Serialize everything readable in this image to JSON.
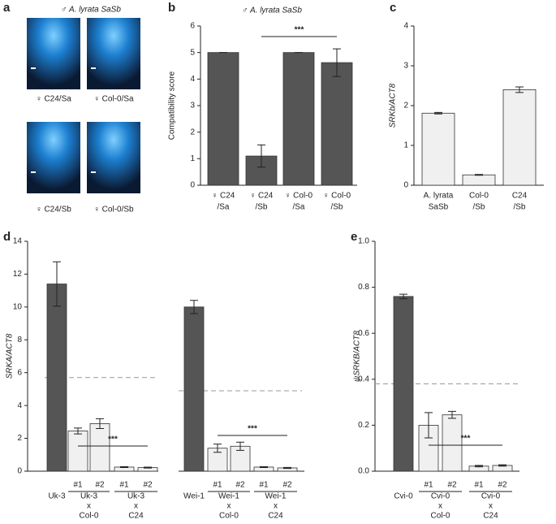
{
  "figure_a": {
    "panel": "a",
    "title": "♂ A. lyrata SaSb",
    "images": [
      "♀ C24/Sa",
      "♀ Col-0/Sa",
      "♀ C24/Sb",
      "♀ Col-0/Sb"
    ]
  },
  "chart_data": [
    {
      "type": "bar",
      "panel": "b",
      "title": "♂ A. lyrata SaSb",
      "ylabel": "Compatibility score",
      "ylim": [
        0,
        6
      ],
      "yticks": [
        0,
        1,
        2,
        3,
        4,
        5,
        6
      ],
      "significance": "***",
      "groups": [
        {
          "color": "#555555",
          "categories": [
            [
              "♀ C24",
              "/Sa"
            ],
            [
              "♀ C24",
              "/Sb"
            ],
            [
              "♀ Col-0",
              "/Sa"
            ],
            [
              "♀ Col-0",
              "/Sb"
            ]
          ],
          "values": [
            5,
            1.1,
            5,
            4.62
          ],
          "errors": [
            0,
            0.42,
            0,
            0.52
          ]
        }
      ]
    },
    {
      "type": "bar",
      "panel": "c",
      "ylabel": "SRKb/ACT8",
      "ylim": [
        0,
        4
      ],
      "yticks": [
        0,
        1,
        2,
        3,
        4
      ],
      "groups": [
        {
          "color": "#f0f0f0",
          "categories": [
            [
              "A. lyrata",
              "SaSb"
            ],
            [
              "Col-0",
              "/Sb"
            ],
            [
              "C24",
              "/Sb"
            ]
          ],
          "values": [
            1.81,
            0.26,
            2.4
          ],
          "errors": [
            0.02,
            0.01,
            0.07
          ]
        }
      ]
    },
    {
      "type": "bar",
      "panel": "d",
      "ylabel": "SRKA/ACT8",
      "ylim": [
        0,
        14
      ],
      "yticks": [
        0,
        2,
        4,
        6,
        8,
        10,
        12,
        14
      ],
      "reference_line": 5.7,
      "significance": "***",
      "groups": [
        {
          "label": [
            "Uk-3"
          ],
          "color": "#555555",
          "categories": [
            null
          ],
          "values": [
            11.4
          ],
          "errors": [
            1.35
          ]
        },
        {
          "label": [
            "Uk-3",
            "x",
            "Col-0"
          ],
          "color": "#f0f0f0",
          "categories": [
            "#1",
            "#2"
          ],
          "values": [
            2.45,
            2.9
          ],
          "errors": [
            0.18,
            0.3
          ]
        },
        {
          "label": [
            "Uk-3",
            "x",
            "C24"
          ],
          "color": "#f0f0f0",
          "categories": [
            "#1",
            "#2"
          ],
          "values": [
            0.25,
            0.22
          ],
          "errors": [
            0.03,
            0.03
          ]
        }
      ]
    },
    {
      "type": "bar",
      "ylim": [
        0,
        14
      ],
      "reference_line": 4.9,
      "significance": "***",
      "groups": [
        {
          "label": [
            "Wei-1"
          ],
          "color": "#555555",
          "categories": [
            null
          ],
          "values": [
            10.0
          ],
          "errors": [
            0.4
          ]
        },
        {
          "label": [
            "Wei-1",
            "x",
            "Col-0"
          ],
          "color": "#f0f0f0",
          "categories": [
            "#1",
            "#2"
          ],
          "values": [
            1.4,
            1.52
          ],
          "errors": [
            0.25,
            0.25
          ]
        },
        {
          "label": [
            "Wei-1",
            "x",
            "C24"
          ],
          "color": "#f0f0f0",
          "categories": [
            "#1",
            "#2"
          ],
          "values": [
            0.25,
            0.2
          ],
          "errors": [
            0.03,
            0.03
          ]
        }
      ]
    },
    {
      "type": "bar",
      "panel": "e",
      "ylabel": "ψSRKB/ACT8",
      "ylim": [
        0,
        1
      ],
      "yticks": [
        {
          "value": 0,
          "label": "0.0"
        },
        0.2,
        0.4,
        0.6,
        0.8,
        {
          "value": 1,
          "label": "1.0"
        }
      ],
      "reference_line": 0.38,
      "significance": "***",
      "groups": [
        {
          "label": [
            "Cvi-0"
          ],
          "color": "#555555",
          "categories": [
            null
          ],
          "values": [
            0.76
          ],
          "errors": [
            0.01
          ]
        },
        {
          "label": [
            "Cvi-0",
            "x",
            "Col-0"
          ],
          "color": "#f0f0f0",
          "categories": [
            "#1",
            "#2"
          ],
          "values": [
            0.2,
            0.245
          ],
          "errors": [
            0.055,
            0.015
          ]
        },
        {
          "label": [
            "Cvi-0",
            "x",
            "C24"
          ],
          "color": "#f0f0f0",
          "categories": [
            "#1",
            "#2"
          ],
          "values": [
            0.022,
            0.025
          ],
          "errors": [
            0.003,
            0.003
          ]
        }
      ]
    }
  ]
}
